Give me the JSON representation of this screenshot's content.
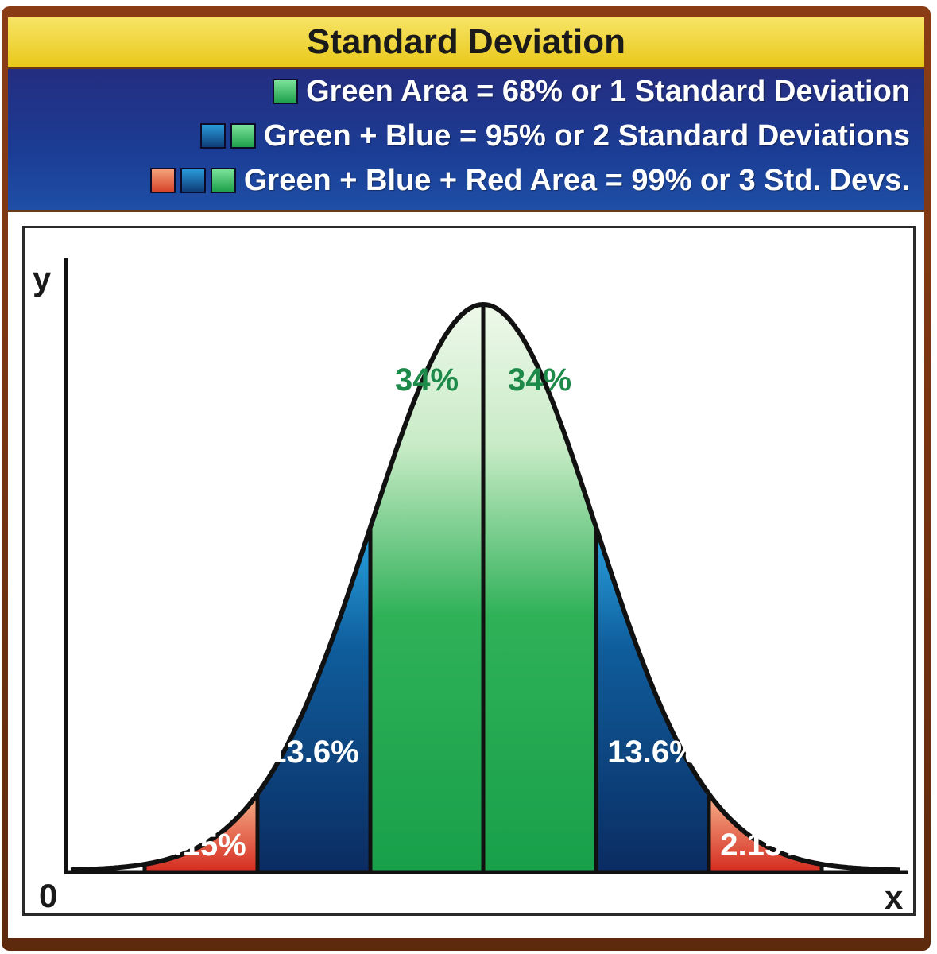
{
  "title": "Standard Deviation",
  "legend": [
    {
      "text": "Green Area = 68% or 1 Standard Deviation",
      "swatches": [
        "green"
      ]
    },
    {
      "text": "Green + Blue = 95% or 2 Standard Deviations",
      "swatches": [
        "blue",
        "green"
      ]
    },
    {
      "text": "Green + Blue + Red Area = 99% or 3 Std. Devs.",
      "swatches": [
        "red",
        "blue",
        "green"
      ]
    }
  ],
  "chart": {
    "y_axis_label": "y",
    "x_axis_label": "x",
    "origin_label": "0",
    "regions": [
      {
        "label": "2.15%",
        "color": "red"
      },
      {
        "label": "13.6%",
        "color": "blue"
      },
      {
        "label": "34%",
        "color": "green"
      },
      {
        "label": "34%",
        "color": "green"
      },
      {
        "label": "13.6%",
        "color": "blue"
      },
      {
        "label": "2.15%",
        "color": "red"
      }
    ]
  },
  "colors": {
    "green": "#1ea04a",
    "blue": "#0e3d78",
    "red": "#d8432a",
    "title_bar": "#f0d63a",
    "legend_panel": "#1f3f98"
  }
}
